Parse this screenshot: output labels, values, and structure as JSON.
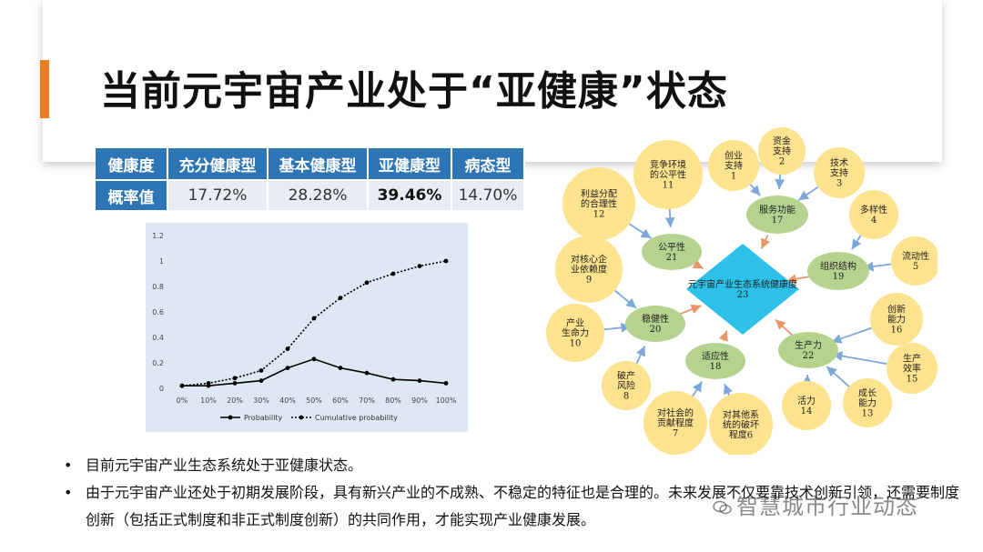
{
  "colors": {
    "accent": "#e67e22",
    "table_header": "#2e75b6",
    "node_yellow": "#fde38e",
    "node_green": "#b5d38f",
    "center_node": "#2dc0e8",
    "arrow_blue": "#7da7d9",
    "arrow_orange": "#e8956a"
  },
  "slide": {
    "title": "当前元宇宙产业处于“亚健康”状态"
  },
  "health_table": {
    "headers": [
      "健康度",
      "充分健康型",
      "基本健康型",
      "亚健康型",
      "病态型"
    ],
    "row": [
      "概率值",
      "17.72%",
      "28.28%",
      "39.46%",
      "14.70%"
    ]
  },
  "chart_data": {
    "type": "line",
    "x": [
      "0%",
      "10%",
      "20%",
      "30%",
      "40%",
      "50%",
      "60%",
      "70%",
      "80%",
      "90%",
      "100%"
    ],
    "ylim": [
      0,
      1.2
    ],
    "yticks": [
      "0",
      "0.2",
      "0.4",
      "0.6",
      "0.8",
      "1",
      "1.2"
    ],
    "series": [
      {
        "name": "Probability",
        "style": "solid",
        "values": [
          0.02,
          0.02,
          0.04,
          0.06,
          0.16,
          0.23,
          0.16,
          0.12,
          0.07,
          0.06,
          0.04
        ]
      },
      {
        "name": "Cumulative probability",
        "style": "dotted",
        "values": [
          0.02,
          0.04,
          0.08,
          0.14,
          0.31,
          0.55,
          0.71,
          0.83,
          0.9,
          0.96,
          1.0
        ]
      }
    ]
  },
  "graph": {
    "center": "元宇宙产业生态系统健康度\n23",
    "nodes": [
      {
        "id": "n1",
        "label": "创业\n支持\n1",
        "kind": "yellow"
      },
      {
        "id": "n2",
        "label": "资金\n支持\n2",
        "kind": "yellow"
      },
      {
        "id": "n3",
        "label": "技术\n支持\n3",
        "kind": "yellow"
      },
      {
        "id": "n4",
        "label": "多样性\n4",
        "kind": "yellow"
      },
      {
        "id": "n5",
        "label": "流动性\n5",
        "kind": "yellow"
      },
      {
        "id": "n11",
        "label": "竞争环境\n的公平性\n11",
        "kind": "yellow"
      },
      {
        "id": "n12",
        "label": "利益分配\n的合理性\n12",
        "kind": "yellow"
      },
      {
        "id": "n9",
        "label": "对核心企\n业依赖度\n9",
        "kind": "yellow"
      },
      {
        "id": "n10",
        "label": "产业\n生命力\n10",
        "kind": "yellow"
      },
      {
        "id": "n8",
        "label": "破产\n风险\n8",
        "kind": "yellow"
      },
      {
        "id": "n7",
        "label": "对社会的\n贡献程度\n7",
        "kind": "yellow"
      },
      {
        "id": "n6",
        "label": "对其他系\n统的破坏\n程度6",
        "kind": "yellow"
      },
      {
        "id": "n14",
        "label": "活力\n14",
        "kind": "yellow"
      },
      {
        "id": "n13",
        "label": "成长\n能力\n13",
        "kind": "yellow"
      },
      {
        "id": "n15",
        "label": "生产\n效率\n15",
        "kind": "yellow"
      },
      {
        "id": "n16",
        "label": "创新\n能力\n16",
        "kind": "yellow"
      },
      {
        "id": "n17",
        "label": "服务功能\n17",
        "kind": "green"
      },
      {
        "id": "n19",
        "label": "组织结构\n19",
        "kind": "green"
      },
      {
        "id": "n21",
        "label": "公平性\n21",
        "kind": "green"
      },
      {
        "id": "n20",
        "label": "稳健性\n20",
        "kind": "green"
      },
      {
        "id": "n18",
        "label": "适应性\n18",
        "kind": "green"
      },
      {
        "id": "n22",
        "label": "生产力\n22",
        "kind": "green"
      }
    ]
  },
  "bullets": [
    "目前元宇宙产业生态系统处于亚健康状态。",
    "由于元宇宙产业还处于初期发展阶段，具有新兴产业的不成熟、不稳定的特征也是合理的。未来发展不仅要靠技术创新引领，还需要制度创新（包括正式制度和非正式制度创新）的共同作用，才能实现产业健康发展。"
  ],
  "bullet_symbol": "•",
  "watermark": "智慧城市行业动态"
}
